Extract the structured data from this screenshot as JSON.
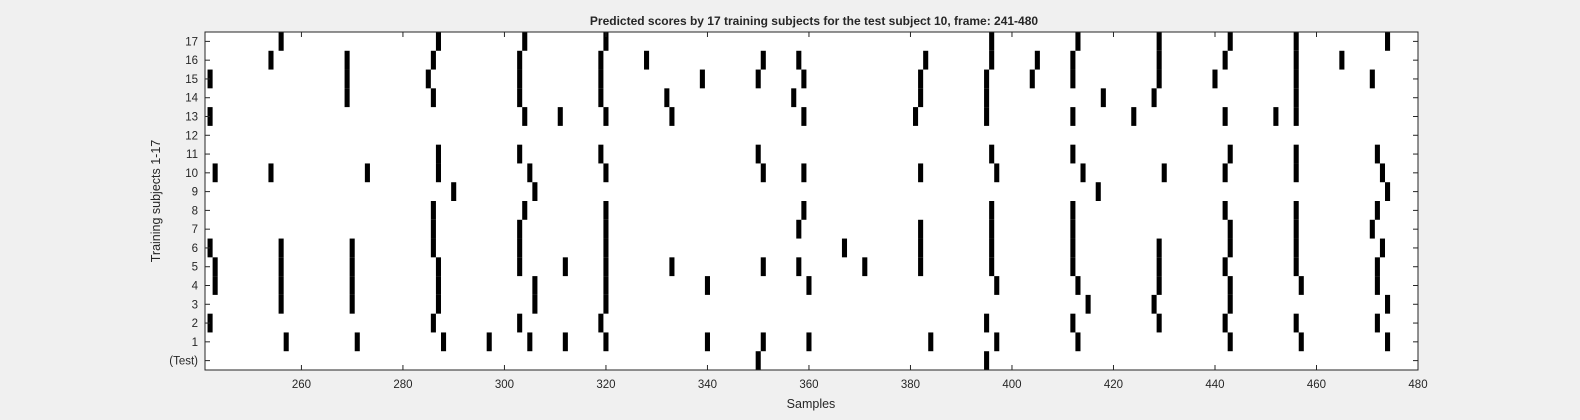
{
  "chart_data": {
    "type": "heatmap",
    "title": "Predicted scores by 17 training subjects for the test subject 10, frame: 241-480",
    "xlabel": "Samples",
    "ylabel": "Training subjects 1-17",
    "xlim": [
      241,
      480
    ],
    "xticks": [
      260,
      280,
      300,
      320,
      340,
      360,
      380,
      400,
      420,
      440,
      460,
      480
    ],
    "rows": [
      "(Test)",
      "1",
      "2",
      "3",
      "4",
      "5",
      "6",
      "7",
      "8",
      "9",
      "10",
      "11",
      "12",
      "13",
      "14",
      "15",
      "16",
      "17"
    ],
    "marked_samples": {
      "(Test)": [
        350,
        395
      ],
      "1": [
        257,
        271,
        288,
        297,
        305,
        312,
        320,
        340,
        351,
        360,
        384,
        397,
        413,
        443,
        457,
        474
      ],
      "2": [
        242,
        286,
        303,
        319,
        395,
        412,
        429,
        442,
        456,
        472
      ],
      "3": [
        256,
        270,
        287,
        306,
        320,
        415,
        428,
        443,
        474
      ],
      "4": [
        243,
        256,
        270,
        287,
        306,
        320,
        340,
        360,
        397,
        413,
        429,
        443,
        457,
        472
      ],
      "5": [
        243,
        256,
        270,
        287,
        303,
        312,
        320,
        333,
        351,
        358,
        371,
        382,
        396,
        412,
        429,
        442,
        456,
        472
      ],
      "6": [
        242,
        256,
        270,
        286,
        303,
        320,
        367,
        382,
        396,
        412,
        429,
        443,
        456,
        473
      ],
      "7": [
        286,
        303,
        320,
        358,
        382,
        396,
        412,
        443,
        456,
        471
      ],
      "8": [
        286,
        304,
        320,
        359,
        396,
        412,
        442,
        456,
        472
      ],
      "9": [
        290,
        306,
        417,
        474
      ],
      "10": [
        243,
        254,
        273,
        287,
        305,
        320,
        351,
        359,
        382,
        397,
        414,
        430,
        442,
        456,
        473
      ],
      "11": [
        287,
        303,
        319,
        350,
        396,
        412,
        443,
        456,
        472
      ],
      "12": [],
      "13": [
        242,
        304,
        311,
        320,
        333,
        359,
        381,
        395,
        412,
        424,
        442,
        452,
        456
      ],
      "14": [
        269,
        286,
        303,
        319,
        332,
        357,
        382,
        395,
        418,
        428,
        456
      ],
      "15": [
        242,
        269,
        285,
        303,
        319,
        339,
        350,
        359,
        382,
        395,
        404,
        412,
        429,
        440,
        456,
        471
      ],
      "16": [
        254,
        269,
        286,
        303,
        319,
        328,
        351,
        358,
        383,
        396,
        405,
        412,
        429,
        442,
        456,
        465
      ],
      "17": [
        256,
        287,
        304,
        320,
        396,
        413,
        429,
        443,
        456,
        474
      ]
    }
  }
}
